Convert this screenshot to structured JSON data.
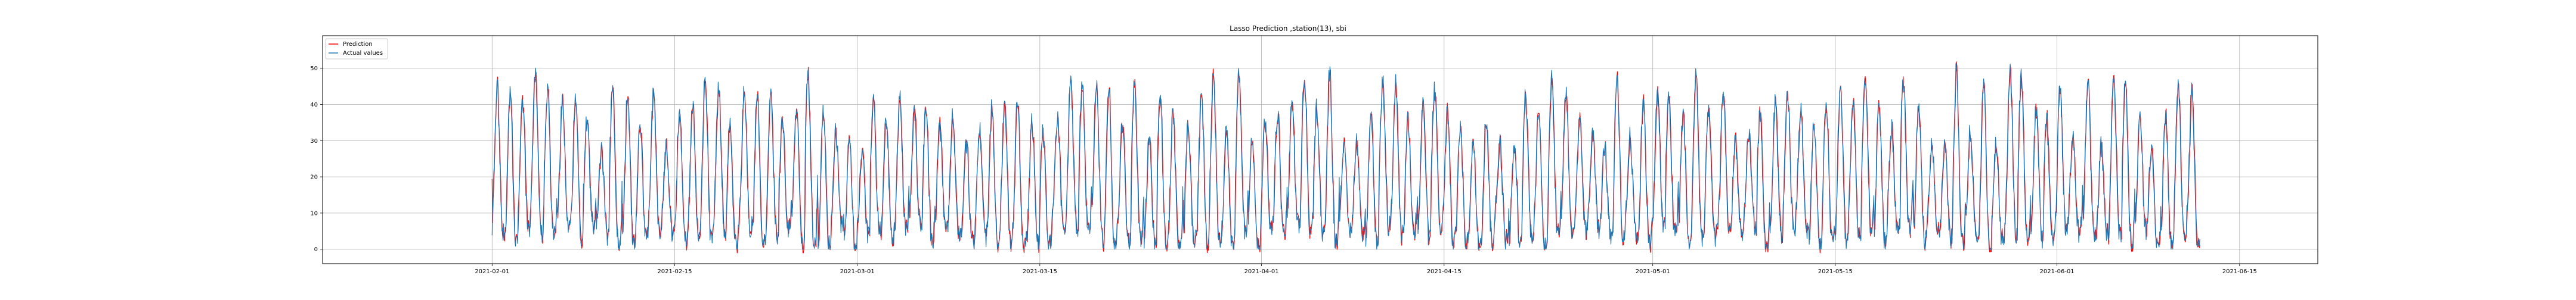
{
  "chart_data": {
    "type": "line",
    "title": "Lasso Prediction ,station(13), sbi",
    "xlabel": "",
    "ylabel": "",
    "xlim": [
      "2021-01-19",
      "2021-06-21"
    ],
    "ylim": [
      -4,
      59
    ],
    "grid": true,
    "legend": "top-left",
    "x_ticks": [
      "2021-02-01",
      "2021-02-15",
      "2021-03-01",
      "2021-03-15",
      "2021-04-01",
      "2021-04-15",
      "2021-05-01",
      "2021-05-15",
      "2021-06-01",
      "2021-06-15"
    ],
    "y_ticks": [
      0,
      10,
      20,
      30,
      40,
      50
    ],
    "data_range": [
      "2021-02-01",
      "2021-06-11"
    ],
    "series": [
      {
        "name": "Prediction",
        "color": "#ff0000"
      },
      {
        "name": "Actual values",
        "color": "#1f77b4"
      }
    ]
  },
  "legend_items": [
    {
      "label": "Prediction",
      "color": "#ff0000"
    },
    {
      "label": "Actual values",
      "color": "#1f77b4"
    }
  ]
}
